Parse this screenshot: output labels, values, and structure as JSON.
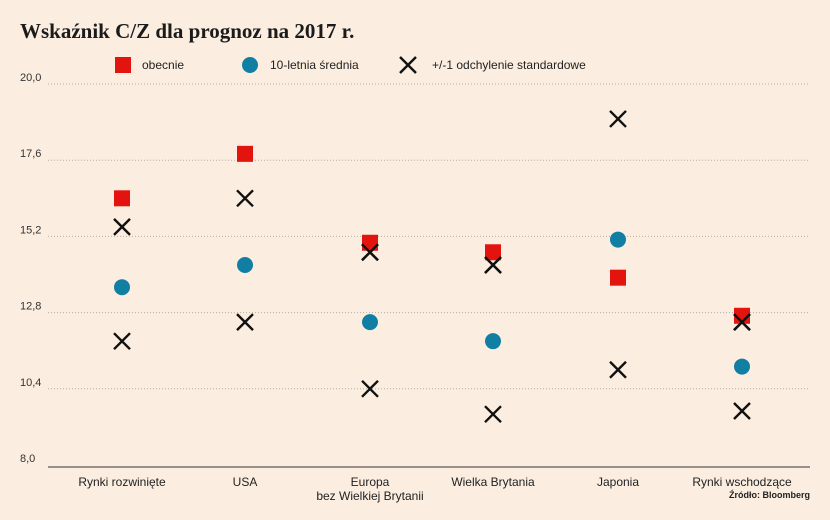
{
  "chart_data": {
    "type": "scatter",
    "title": "Wskaźnik C/Z dla prognoz na 2017 r.",
    "source": "Źródło: Bloomberg",
    "ylim": [
      8.0,
      20.0
    ],
    "yticks": [
      "20,0",
      "17,6",
      "15,2",
      "12,8",
      "10,4",
      "8,0"
    ],
    "ytick_values": [
      20.0,
      17.6,
      15.2,
      12.8,
      10.4,
      8.0
    ],
    "grid": true,
    "legend_position": "top",
    "categories": [
      [
        "Rynki rozwinięte"
      ],
      [
        "USA"
      ],
      [
        "Europa",
        "bez Wielkiej Brytanii"
      ],
      [
        "Wielka Brytania"
      ],
      [
        "Japonia"
      ],
      [
        "Rynki wschodzące"
      ]
    ],
    "series": [
      {
        "name": "obecnie",
        "marker": "square",
        "color": "#e3140f",
        "values": [
          16.4,
          17.8,
          15.0,
          14.7,
          13.9,
          12.7
        ]
      },
      {
        "name": "10-letnia średnia",
        "marker": "circle",
        "color": "#117fa3",
        "values": [
          13.6,
          14.3,
          12.5,
          11.9,
          15.1,
          11.1
        ]
      },
      {
        "name": "+/-1 odchylenie standardowe",
        "marker": "cross",
        "color": "#111111",
        "values_low": [
          11.9,
          12.5,
          10.4,
          9.6,
          11.0,
          9.7
        ],
        "values_high": [
          15.5,
          16.4,
          14.7,
          14.3,
          18.9,
          12.5
        ]
      }
    ]
  }
}
